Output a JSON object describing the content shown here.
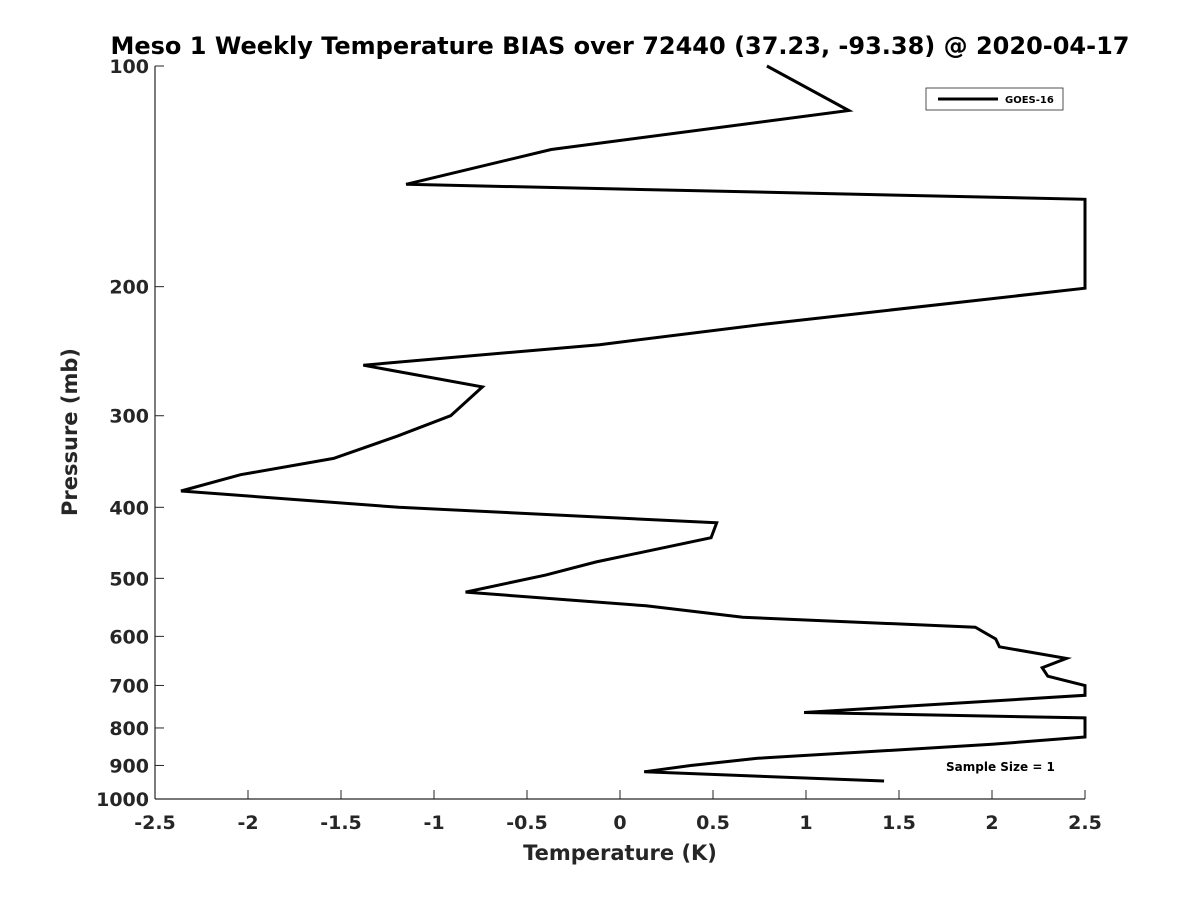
{
  "chart_data": {
    "type": "line",
    "title": "Meso 1 Weekly Temperature BIAS over 72440 (37.23, -93.38) @ 2020-04-17",
    "xlabel": "Temperature (K)",
    "ylabel": "Pressure (mb)",
    "xlim": [
      -2.5,
      2.5
    ],
    "ylim": [
      100,
      1000
    ],
    "y_scale": "log",
    "y_reversed": true,
    "grid": false,
    "legend_position": "top-right",
    "x_ticks": [
      "-2.5",
      "-2",
      "-1.5",
      "-1",
      "-0.5",
      "0",
      "0.5",
      "1",
      "1.5",
      "2",
      "2.5"
    ],
    "x_tick_values": [
      -2.5,
      -2,
      -1.5,
      -1,
      -0.5,
      0,
      0.5,
      1,
      1.5,
      2,
      2.5
    ],
    "y_ticks": [
      "100",
      "200",
      "300",
      "400",
      "500",
      "600",
      "700",
      "800",
      "900",
      "1000"
    ],
    "y_tick_values": [
      100,
      200,
      300,
      400,
      500,
      600,
      700,
      800,
      900,
      1000
    ],
    "annotation": "Sample Size = 1",
    "series": [
      {
        "name": "GOES-16",
        "color": "#000000",
        "points": [
          [
            0.79,
            100
          ],
          [
            1.23,
            115
          ],
          [
            -0.37,
            130
          ],
          [
            -1.15,
            145
          ],
          [
            2.5,
            152
          ],
          [
            2.5,
            201
          ],
          [
            0.78,
            225
          ],
          [
            -0.11,
            240
          ],
          [
            -1.38,
            256
          ],
          [
            -0.74,
            274
          ],
          [
            -0.91,
            300
          ],
          [
            -1.2,
            320
          ],
          [
            -1.54,
            343
          ],
          [
            -2.04,
            361
          ],
          [
            -2.36,
            380
          ],
          [
            -1.19,
            400
          ],
          [
            0.52,
            420
          ],
          [
            0.49,
            440
          ],
          [
            -0.13,
            475
          ],
          [
            -0.4,
            495
          ],
          [
            -0.83,
            522
          ],
          [
            0.14,
            545
          ],
          [
            0.66,
            565
          ],
          [
            1.91,
            583
          ],
          [
            2.02,
            605
          ],
          [
            2.04,
            620
          ],
          [
            2.4,
            643
          ],
          [
            2.27,
            662
          ],
          [
            2.3,
            680
          ],
          [
            2.5,
            700
          ],
          [
            2.5,
            722
          ],
          [
            0.99,
            762
          ],
          [
            2.5,
            775
          ],
          [
            2.5,
            823
          ],
          [
            2.0,
            842
          ],
          [
            0.74,
            880
          ],
          [
            0.38,
            900
          ],
          [
            0.13,
            918
          ],
          [
            1.42,
            945
          ]
        ]
      }
    ]
  }
}
